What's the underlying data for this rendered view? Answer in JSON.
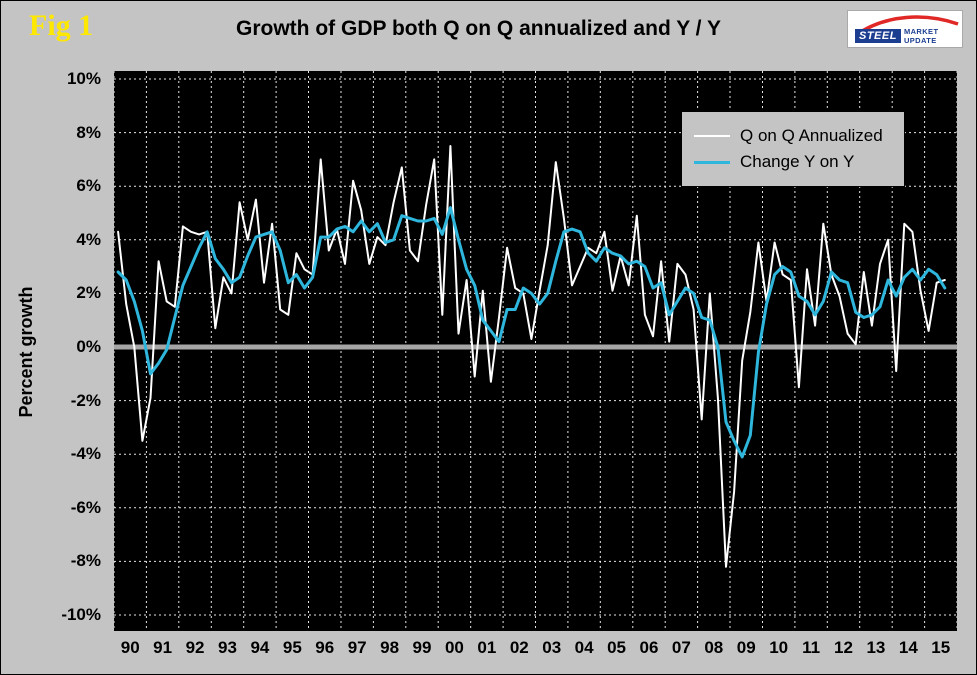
{
  "fig_label": "Fig 1",
  "title": "Growth of GDP both Q on Q annualized and Y / Y",
  "logo": {
    "steel": "STEEL",
    "market_update": "MARKET UPDATE"
  },
  "colors": {
    "background": "#c4c4c4",
    "fig_label": "#ffe800",
    "plot_bg": "#000000",
    "grid": "#ffffff",
    "zero_line": "#a6a6a6",
    "series_qoq": "#ffffff",
    "series_yoy": "#2eb6dc",
    "logo_blue": "#1b3e91",
    "logo_red": "#e02826"
  },
  "chart_data": {
    "type": "line",
    "title": "Growth of GDP both Q on Q annualized and Y / Y",
    "ylabel": "Percent growth",
    "ylim": [
      -10,
      10
    ],
    "ytick_step": 2,
    "ytick_labels": [
      "10%",
      "8%",
      "6%",
      "4%",
      "2%",
      "0%",
      "-2%",
      "-4%",
      "-6%",
      "-8%",
      "-10%"
    ],
    "x_years": [
      "90",
      "91",
      "92",
      "93",
      "94",
      "95",
      "96",
      "97",
      "98",
      "99",
      "00",
      "01",
      "02",
      "03",
      "04",
      "05",
      "06",
      "07",
      "08",
      "09",
      "10",
      "11",
      "12",
      "13",
      "14",
      "15"
    ],
    "x_unit": "quarterly points, 1990Q1 through 2015Q3",
    "grid": "white dashed, vertical at each year and horizontal at each 2%",
    "legend_position": "top-right inside plot",
    "plot_bg": "#000000",
    "grid_color": "#ffffff",
    "zero_line_color": "#a6a6a6",
    "series": [
      {
        "name": "Q on Q Annualized",
        "color": "#ffffff",
        "stroke_width": 2,
        "values": [
          4.3,
          1.6,
          0.0,
          -3.5,
          -1.9,
          3.2,
          1.7,
          1.5,
          4.5,
          4.3,
          4.2,
          4.3,
          0.7,
          2.6,
          2.0,
          5.4,
          4.0,
          5.5,
          2.4,
          4.6,
          1.4,
          1.2,
          3.5,
          2.9,
          2.7,
          7.0,
          3.6,
          4.4,
          3.1,
          6.2,
          5.1,
          3.1,
          4.1,
          3.8,
          5.4,
          6.7,
          3.6,
          3.2,
          5.3,
          7.0,
          1.2,
          7.5,
          0.5,
          2.5,
          -1.1,
          2.1,
          -1.3,
          1.1,
          3.7,
          2.2,
          2.0,
          0.3,
          2.1,
          3.8,
          6.9,
          4.8,
          2.3,
          3.0,
          3.7,
          3.5,
          4.3,
          2.1,
          3.4,
          2.3,
          4.9,
          1.2,
          0.4,
          3.2,
          0.2,
          3.1,
          2.7,
          1.4,
          -2.7,
          2.0,
          -1.9,
          -8.2,
          -5.4,
          -0.5,
          1.3,
          3.9,
          1.7,
          3.9,
          2.7,
          2.5,
          -1.5,
          2.9,
          0.8,
          4.6,
          2.7,
          1.9,
          0.5,
          0.1,
          2.8,
          0.8,
          3.1,
          4.0,
          -0.9,
          4.6,
          4.3,
          2.1,
          0.6,
          2.4,
          2.5
        ]
      },
      {
        "name": "Change Y on Y",
        "color": "#2eb6dc",
        "stroke_width": 3,
        "values": [
          2.8,
          2.5,
          1.7,
          0.6,
          -1.0,
          -0.6,
          -0.1,
          1.1,
          2.3,
          3.0,
          3.7,
          4.3,
          3.3,
          2.9,
          2.4,
          2.6,
          3.4,
          4.1,
          4.2,
          4.3,
          3.6,
          2.4,
          2.7,
          2.2,
          2.6,
          4.1,
          4.1,
          4.4,
          4.5,
          4.3,
          4.7,
          4.3,
          4.6,
          3.9,
          4.0,
          4.9,
          4.8,
          4.7,
          4.7,
          4.8,
          4.2,
          5.2,
          4.0,
          2.9,
          2.3,
          1.0,
          0.6,
          0.2,
          1.4,
          1.4,
          2.2,
          2.0,
          1.6,
          2.0,
          3.2,
          4.3,
          4.4,
          4.3,
          3.5,
          3.2,
          3.7,
          3.5,
          3.4,
          3.1,
          3.2,
          3.0,
          2.2,
          2.4,
          1.2,
          1.7,
          2.2,
          2.0,
          1.1,
          1.0,
          0.0,
          -2.8,
          -3.5,
          -4.1,
          -3.3,
          -0.2,
          1.6,
          2.7,
          3.0,
          2.8,
          1.9,
          1.7,
          1.2,
          1.7,
          2.8,
          2.5,
          2.4,
          1.3,
          1.1,
          1.2,
          1.5,
          2.5,
          1.9,
          2.6,
          2.9,
          2.5,
          2.9,
          2.7,
          2.2
        ]
      }
    ]
  }
}
